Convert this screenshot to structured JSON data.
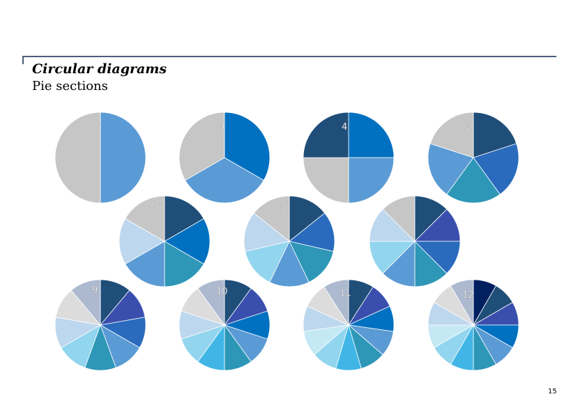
{
  "header": {
    "title": "Circular diagrams",
    "subtitle": "Pie sections"
  },
  "page_number": "15",
  "colors": {
    "grey": "#c6c6c6",
    "light_grey": "#dcdcdc",
    "grey_blue": "#adb9cf",
    "navy": "#1f4e79",
    "dark_navy": "#002060",
    "indigo": "#3a4fad",
    "royal": "#2a6bbd",
    "bright": "#0070c0",
    "medium": "#5b9bd5",
    "teal": "#2e97b7",
    "sky": "#41b6e6",
    "light_sky": "#92d5ee",
    "pale": "#bdd7ee",
    "paler": "#c5e8f5"
  },
  "chart_data": {
    "type": "pie",
    "pies": [
      {
        "label": "2",
        "colors": [
          "medium",
          "grey"
        ]
      },
      {
        "label": "3",
        "colors": [
          "bright",
          "medium",
          "grey"
        ]
      },
      {
        "label": "4",
        "colors": [
          "bright",
          "medium",
          "grey",
          "navy"
        ]
      },
      {
        "label": "5",
        "colors": [
          "navy",
          "royal",
          "teal",
          "medium",
          "grey"
        ]
      },
      {
        "label": "6",
        "colors": [
          "navy",
          "bright",
          "teal",
          "medium",
          "pale",
          "grey"
        ]
      },
      {
        "label": "7",
        "colors": [
          "navy",
          "royal",
          "teal",
          "medium",
          "light_sky",
          "pale",
          "grey"
        ]
      },
      {
        "label": "8",
        "colors": [
          "navy",
          "indigo",
          "royal",
          "teal",
          "medium",
          "light_sky",
          "pale",
          "grey"
        ]
      },
      {
        "label": "9",
        "colors": [
          "navy",
          "indigo",
          "royal",
          "medium",
          "teal",
          "light_sky",
          "pale",
          "light_grey",
          "grey_blue"
        ]
      },
      {
        "label": "10",
        "colors": [
          "navy",
          "indigo",
          "bright",
          "medium",
          "teal",
          "sky",
          "light_sky",
          "pale",
          "light_grey",
          "grey_blue"
        ]
      },
      {
        "label": "11",
        "colors": [
          "navy",
          "indigo",
          "bright",
          "medium",
          "teal",
          "sky",
          "light_sky",
          "paler",
          "pale",
          "light_grey",
          "grey_blue"
        ]
      },
      {
        "label": "12",
        "colors": [
          "dark_navy",
          "navy",
          "indigo",
          "bright",
          "medium",
          "teal",
          "sky",
          "light_sky",
          "paler",
          "pale",
          "light_grey",
          "grey_blue"
        ]
      }
    ]
  }
}
